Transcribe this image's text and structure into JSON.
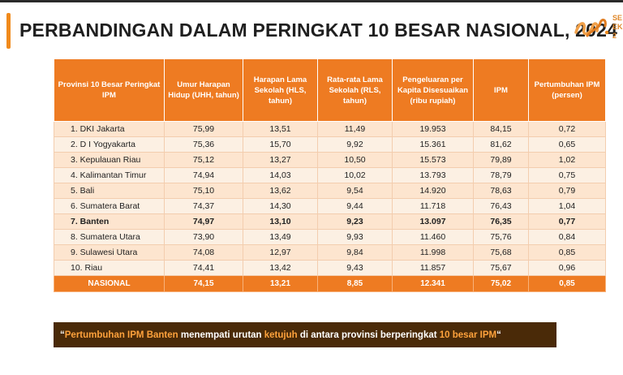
{
  "title": "PERBANDINGAN DALAM PERINGKAT 10 BESAR NASIONAL, 2024",
  "logo": {
    "text_lines": [
      "SE",
      "EK",
      "2"
    ]
  },
  "table": {
    "headers": [
      "Provinsi 10 Besar Peringkat IPM",
      "Umur Harapan Hidup (UHH, tahun)",
      "Harapan Lama Sekolah (HLS, tahun)",
      "Rata-rata Lama Sekolah (RLS, tahun)",
      "Pengeluaran per Kapita Disesuaikan (ribu rupiah)",
      "IPM",
      "Pertumbuhan IPM (persen)"
    ],
    "rows": [
      {
        "cells": [
          "1. DKI Jakarta",
          "75,99",
          "13,51",
          "11,49",
          "19.953",
          "84,15",
          "0,72"
        ]
      },
      {
        "cells": [
          "2. D I Yogyakarta",
          "75,36",
          "15,70",
          "9,92",
          "15.361",
          "81,62",
          "0,65"
        ]
      },
      {
        "cells": [
          "3. Kepulauan Riau",
          "75,12",
          "13,27",
          "10,50",
          "15.573",
          "79,89",
          "1,02"
        ]
      },
      {
        "cells": [
          "4. Kalimantan Timur",
          "74,94",
          "14,03",
          "10,02",
          "13.793",
          "78,79",
          "0,75"
        ]
      },
      {
        "cells": [
          "5. Bali",
          "75,10",
          "13,62",
          "9,54",
          "14.920",
          "78,63",
          "0,79"
        ]
      },
      {
        "cells": [
          "6. Sumatera Barat",
          "74,37",
          "14,30",
          "9,44",
          "11.718",
          "76,43",
          "1,04"
        ]
      },
      {
        "cells": [
          "7. Banten",
          "74,97",
          "13,10",
          "9,23",
          "13.097",
          "76,35",
          "0,77"
        ]
      },
      {
        "cells": [
          "8. Sumatera Utara",
          "73,90",
          "13,49",
          "9,93",
          "11.460",
          "75,76",
          "0,84"
        ]
      },
      {
        "cells": [
          "9. Sulawesi Utara",
          "74,08",
          "12,97",
          "9,84",
          "11.998",
          "75,68",
          "0,85"
        ]
      },
      {
        "cells": [
          "10. Riau",
          "74,41",
          "13,42",
          "9,43",
          "11.857",
          "75,67",
          "0,96"
        ]
      }
    ],
    "total": {
      "cells": [
        "NASIONAL",
        "74,15",
        "13,21",
        "8,85",
        "12.341",
        "75,02",
        "0,85"
      ]
    }
  },
  "note": {
    "open_quote": "“",
    "part1": "Pertumbuhan IPM Banten",
    "part2": " menempati urutan ",
    "part3": "ketujuh",
    "part4": " di antara provinsi berperingkat ",
    "part5": "10 besar IPM",
    "close_quote": "“"
  },
  "colors": {
    "accent": "#ee7b22",
    "row_light": "#fcf0e3",
    "row_dark": "#fde5cf",
    "note_bg": "#4a2a08",
    "note_highlight": "#ffa23c"
  }
}
